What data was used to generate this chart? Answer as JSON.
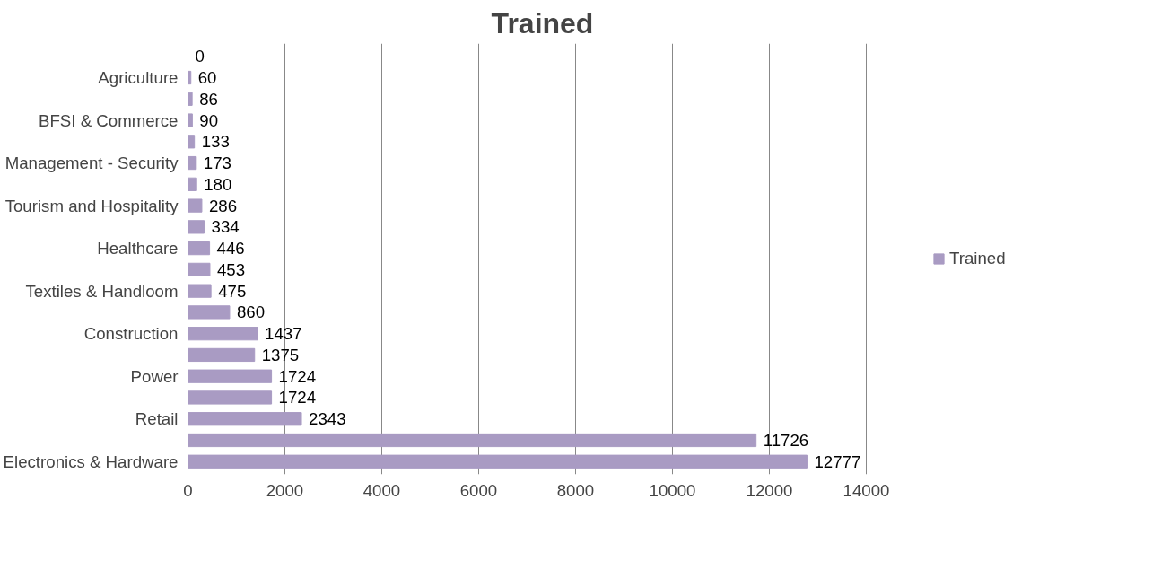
{
  "chart_data": {
    "type": "bar",
    "orientation": "horizontal",
    "title": "Trained",
    "categories": [
      null,
      "Agriculture",
      null,
      "BFSI & Commerce",
      null,
      "Management - Security",
      null,
      "Tourism and Hospitality",
      null,
      "Healthcare",
      null,
      "Textiles & Handloom",
      null,
      "Construction",
      null,
      "Power",
      null,
      "Retail",
      null,
      "Electronics & Hardware"
    ],
    "series": [
      {
        "name": "Trained",
        "color": "#a99bc3",
        "values": [
          0,
          60,
          86,
          90,
          133,
          173,
          180,
          286,
          334,
          446,
          453,
          475,
          860,
          1437,
          1375,
          1724,
          1724,
          2343,
          11726,
          12777
        ]
      }
    ],
    "xlim": [
      0,
      14000
    ],
    "xticks": [
      0,
      2000,
      4000,
      6000,
      8000,
      10000,
      12000,
      14000
    ],
    "grid": "x",
    "legend": "right",
    "data_labels": true
  }
}
